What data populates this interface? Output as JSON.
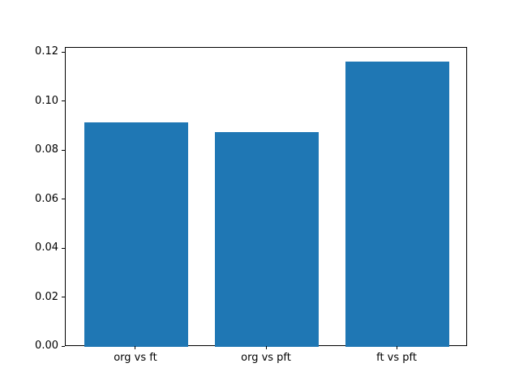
{
  "figure": {
    "background": "#ffffff"
  },
  "chart_data": {
    "type": "bar",
    "title": "",
    "xlabel": "",
    "ylabel": "",
    "categories": [
      "org vs ft",
      "org vs pft",
      "ft vs pft"
    ],
    "values": [
      0.0915,
      0.0877,
      0.1163
    ],
    "bar_color": "#1f77b4",
    "axis_color": "#000000",
    "ylim": [
      0,
      0.12
    ],
    "ytick_step": 0.02,
    "ytick_labels": [
      "0.00",
      "0.02",
      "0.04",
      "0.06",
      "0.08",
      "0.10",
      "0.12"
    ],
    "bar_width_fraction": 0.8,
    "grid": false,
    "legend": null
  }
}
